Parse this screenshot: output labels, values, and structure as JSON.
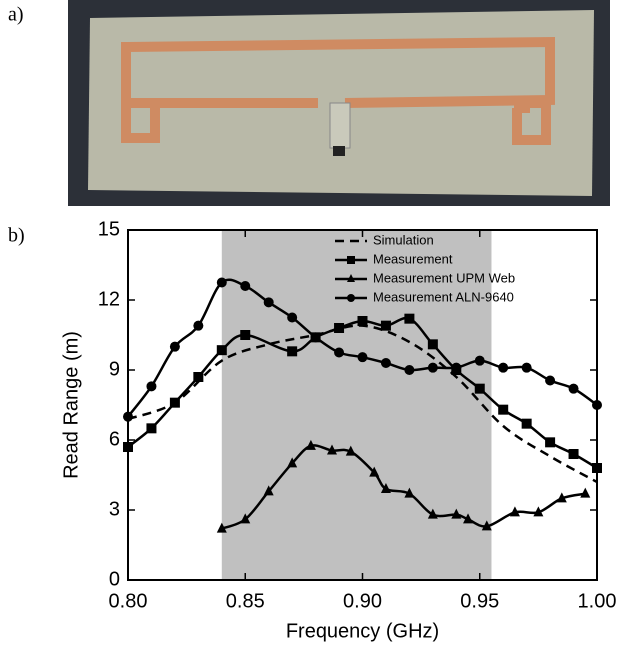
{
  "figure_labels": [
    "a)",
    "b)"
  ],
  "chart_data": {
    "type": "line",
    "xlabel": "Frequency (GHz)",
    "ylabel": "Read Range (m)",
    "xlim": [
      0.8,
      1.0
    ],
    "ylim": [
      0,
      15
    ],
    "xticks": [
      {
        "value": 0.8,
        "label": "0.80"
      },
      0.85,
      {
        "value": 0.9,
        "label": "0.90"
      },
      0.95,
      {
        "value": 1.0,
        "label": "1.00"
      }
    ],
    "yticks": [
      0,
      3,
      6,
      9,
      12,
      15
    ],
    "shaded_span": [
      0.84,
      0.955
    ],
    "shade_color": "#c0c0c0",
    "legend": "upper center",
    "series": [
      {
        "name": "Simulation",
        "color": "#000000",
        "marker": "none",
        "dashed": true,
        "x": [
          0.8,
          0.82,
          0.84,
          0.86,
          0.88,
          0.9,
          0.92,
          0.94,
          0.96,
          0.98,
          1.0
        ],
        "values": [
          6.9,
          7.6,
          9.4,
          10.1,
          10.5,
          10.9,
          10.2,
          8.7,
          6.6,
          5.3,
          4.2
        ]
      },
      {
        "name": "Measurement",
        "color": "#000000",
        "marker": "square",
        "dashed": false,
        "x": [
          0.8,
          0.81,
          0.82,
          0.83,
          0.84,
          0.85,
          0.87,
          0.88,
          0.89,
          0.9,
          0.91,
          0.92,
          0.93,
          0.94,
          0.95,
          0.96,
          0.97,
          0.98,
          0.99,
          1.0
        ],
        "values": [
          5.7,
          6.5,
          7.6,
          8.7,
          9.85,
          10.5,
          9.8,
          10.4,
          10.8,
          11.1,
          10.9,
          11.2,
          10.1,
          9.0,
          8.2,
          7.3,
          6.7,
          5.9,
          5.4,
          4.8
        ]
      },
      {
        "name": "Measurement UPM Web",
        "color": "#000000",
        "marker": "triangle",
        "dashed": false,
        "x": [
          0.84,
          0.85,
          0.86,
          0.87,
          0.878,
          0.887,
          0.895,
          0.905,
          0.91,
          0.92,
          0.93,
          0.94,
          0.945,
          0.953,
          0.965,
          0.975,
          0.985,
          0.995
        ],
        "values": [
          2.2,
          2.6,
          3.8,
          5.0,
          5.75,
          5.55,
          5.5,
          4.6,
          3.9,
          3.7,
          2.8,
          2.8,
          2.6,
          2.3,
          2.9,
          2.9,
          3.5,
          3.7
        ]
      },
      {
        "name": "Measurement ALN-9640",
        "color": "#000000",
        "marker": "circle",
        "dashed": false,
        "x": [
          0.8,
          0.81,
          0.82,
          0.83,
          0.84,
          0.85,
          0.86,
          0.87,
          0.88,
          0.89,
          0.9,
          0.91,
          0.92,
          0.93,
          0.94,
          0.95,
          0.96,
          0.97,
          0.98,
          0.99,
          1.0
        ],
        "values": [
          7.0,
          8.3,
          10.0,
          10.9,
          12.75,
          12.6,
          11.9,
          11.25,
          10.4,
          9.75,
          9.55,
          9.3,
          9.0,
          9.1,
          9.1,
          9.4,
          9.1,
          9.1,
          8.55,
          8.2,
          7.5
        ]
      }
    ]
  }
}
